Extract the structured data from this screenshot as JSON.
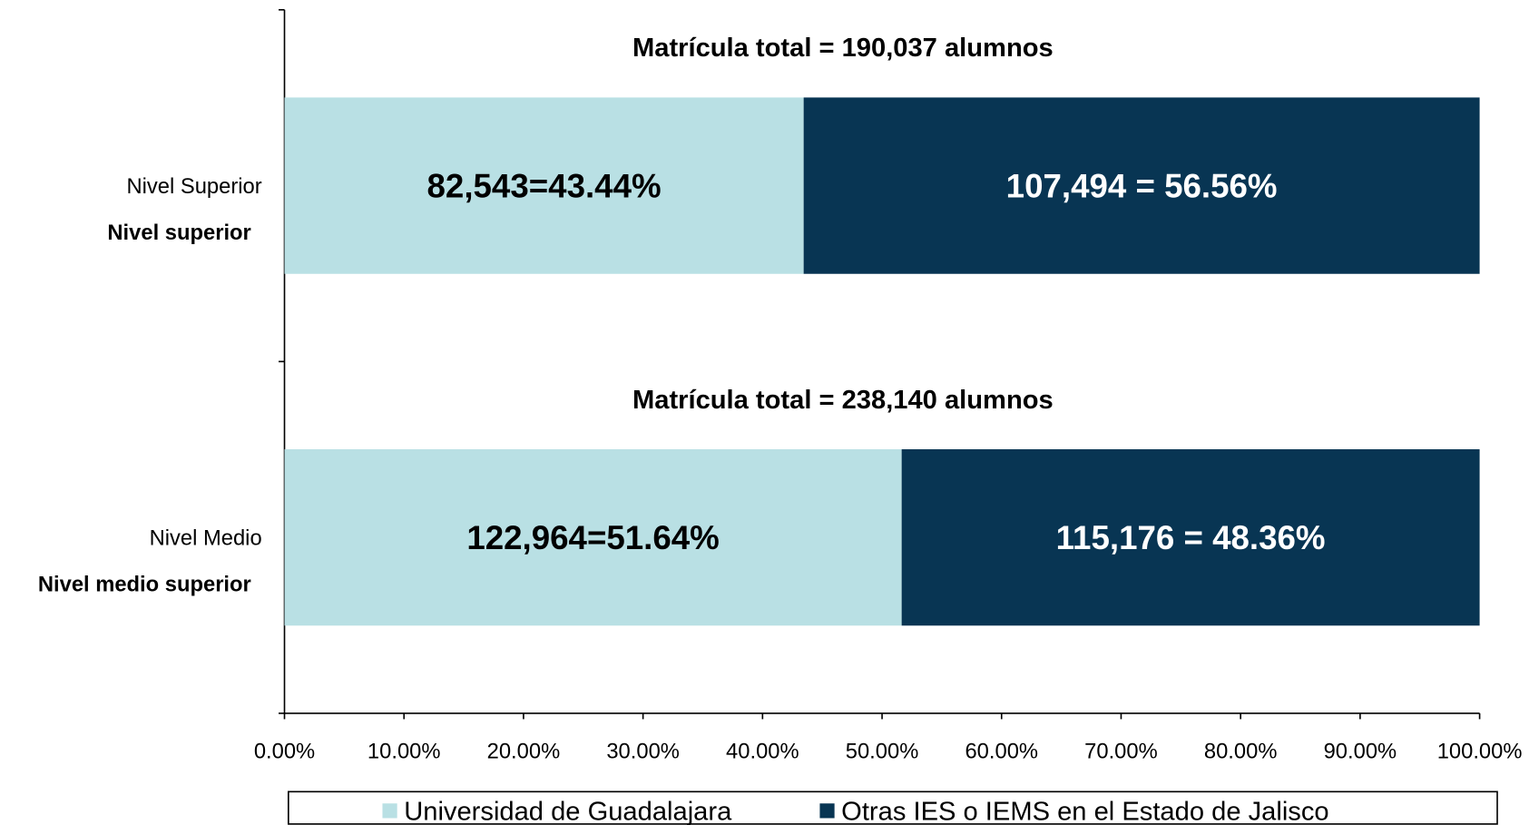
{
  "chart_data": {
    "type": "stacked-bar-horizontal",
    "categories": [
      "Nivel Superior",
      "Nivel Medio"
    ],
    "category_subtitles": [
      "Nivel superior",
      "Nivel medio superior"
    ],
    "annotations": [
      "Matrícula total = 190,037 alumnos",
      "Matrícula total = 238,140 alumnos"
    ],
    "series": [
      {
        "name": "Universidad de Guadalajara",
        "color": "#b9e0e4",
        "label_color": "#000000",
        "values": [
          43.44,
          51.64
        ],
        "value_labels": [
          "82,543=43.44%",
          "122,964=51.64%"
        ]
      },
      {
        "name": "Otras IES o IEMS en el Estado de Jalisco",
        "color": "#083553",
        "label_color": "#ffffff",
        "values": [
          56.56,
          48.36
        ],
        "value_labels": [
          "107,494 = 56.56%",
          "115,176 = 48.36%"
        ]
      }
    ],
    "xlim": [
      0,
      100
    ],
    "xticks": [
      {
        "value": 0,
        "label": "0.00%"
      },
      {
        "value": 10,
        "label": "10.00%"
      },
      {
        "value": 20,
        "label": "20.00%"
      },
      {
        "value": 30,
        "label": "30.00%"
      },
      {
        "value": 40,
        "label": "40.00%"
      },
      {
        "value": 50,
        "label": "50.00%"
      },
      {
        "value": 60,
        "label": "60.00%"
      },
      {
        "value": 70,
        "label": "70.00%"
      },
      {
        "value": 80,
        "label": "80.00%"
      },
      {
        "value": 90,
        "label": "90.00%"
      },
      {
        "value": 100,
        "label": "100.00%"
      }
    ],
    "legend": "bottom"
  }
}
